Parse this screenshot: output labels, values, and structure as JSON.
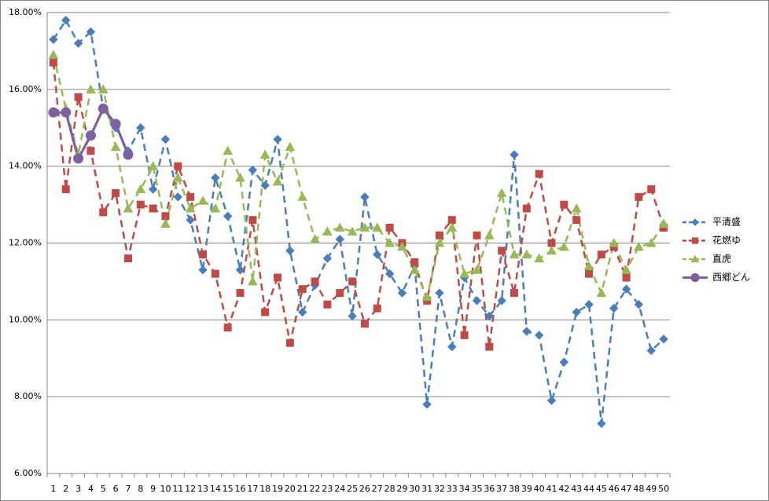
{
  "chart_data": {
    "type": "line",
    "categories": [
      1,
      2,
      3,
      4,
      5,
      6,
      7,
      8,
      9,
      10,
      11,
      12,
      13,
      14,
      15,
      16,
      17,
      18,
      19,
      20,
      21,
      22,
      23,
      24,
      25,
      26,
      27,
      28,
      29,
      30,
      31,
      32,
      33,
      34,
      35,
      36,
      37,
      38,
      39,
      40,
      41,
      42,
      43,
      44,
      45,
      46,
      47,
      48,
      49,
      50
    ],
    "ylim": [
      6,
      18
    ],
    "yticks": [
      {
        "value": 6,
        "label": "6.00%"
      },
      {
        "value": 8,
        "label": "8.00%"
      },
      {
        "value": 10,
        "label": "10.00%"
      },
      {
        "value": 12,
        "label": "12.00%"
      },
      {
        "value": 14,
        "label": "14.00%"
      },
      {
        "value": 16,
        "label": "16.00%"
      },
      {
        "value": 18,
        "label": "18.00%"
      }
    ],
    "grid": true,
    "legend": "right",
    "series": [
      {
        "name": "平清盛",
        "color": "#4a7ebb",
        "marker": "diamond",
        "dashed": true,
        "values": [
          17.3,
          17.8,
          17.2,
          17.5,
          15.5,
          15.0,
          14.4,
          15.0,
          13.4,
          14.7,
          13.2,
          12.6,
          11.3,
          13.7,
          12.7,
          11.3,
          13.9,
          13.5,
          14.7,
          11.8,
          10.2,
          10.9,
          11.6,
          12.1,
          10.1,
          13.2,
          11.7,
          11.2,
          10.7,
          11.4,
          7.8,
          10.7,
          9.3,
          11.1,
          10.5,
          10.1,
          10.5,
          14.3,
          9.7,
          9.6,
          7.9,
          8.9,
          10.2,
          10.4,
          7.3,
          10.3,
          10.8,
          10.4,
          9.2,
          9.5
        ]
      },
      {
        "name": "花燃ゆ",
        "color": "#be4b48",
        "marker": "square",
        "dashed": true,
        "values": [
          16.7,
          13.4,
          15.8,
          14.4,
          12.8,
          13.3,
          11.6,
          13.0,
          12.9,
          12.7,
          14.0,
          13.2,
          11.7,
          11.2,
          9.8,
          10.7,
          12.6,
          10.2,
          11.1,
          9.4,
          10.8,
          11.0,
          10.4,
          10.7,
          11.0,
          9.9,
          10.3,
          12.4,
          12.0,
          11.5,
          10.5,
          12.2,
          12.6,
          9.6,
          12.2,
          9.3,
          11.8,
          10.7,
          12.9,
          13.8,
          12.0,
          13.0,
          12.6,
          11.2,
          11.7,
          11.9,
          11.1,
          13.2,
          13.4,
          12.4
        ]
      },
      {
        "name": "直虎",
        "color": "#98b954",
        "marker": "triangle",
        "dashed": true,
        "values": [
          16.9,
          15.5,
          14.3,
          16.0,
          16.0,
          14.5,
          12.9,
          13.4,
          14.0,
          12.5,
          13.7,
          12.9,
          13.1,
          12.9,
          14.4,
          13.7,
          11.0,
          14.3,
          13.6,
          14.5,
          13.2,
          12.1,
          12.3,
          12.4,
          12.3,
          12.4,
          12.4,
          12.0,
          11.9,
          11.3,
          10.6,
          12.0,
          12.4,
          11.2,
          11.3,
          12.2,
          13.3,
          11.7,
          11.7,
          11.6,
          11.8,
          11.9,
          12.9,
          11.4,
          10.7,
          12.0,
          11.3,
          11.9,
          12.0,
          12.5
        ]
      },
      {
        "name": "西郷どん",
        "color": "#7d60a0",
        "marker": "circle",
        "dashed": false,
        "values": [
          15.4,
          15.4,
          14.2,
          14.8,
          15.5,
          15.1,
          14.3,
          null,
          null,
          null,
          null,
          null,
          null,
          null,
          null,
          null,
          null,
          null,
          null,
          null,
          null,
          null,
          null,
          null,
          null,
          null,
          null,
          null,
          null,
          null,
          null,
          null,
          null,
          null,
          null,
          null,
          null,
          null,
          null,
          null,
          null,
          null,
          null,
          null,
          null,
          null,
          null,
          null,
          null,
          null
        ]
      }
    ]
  }
}
